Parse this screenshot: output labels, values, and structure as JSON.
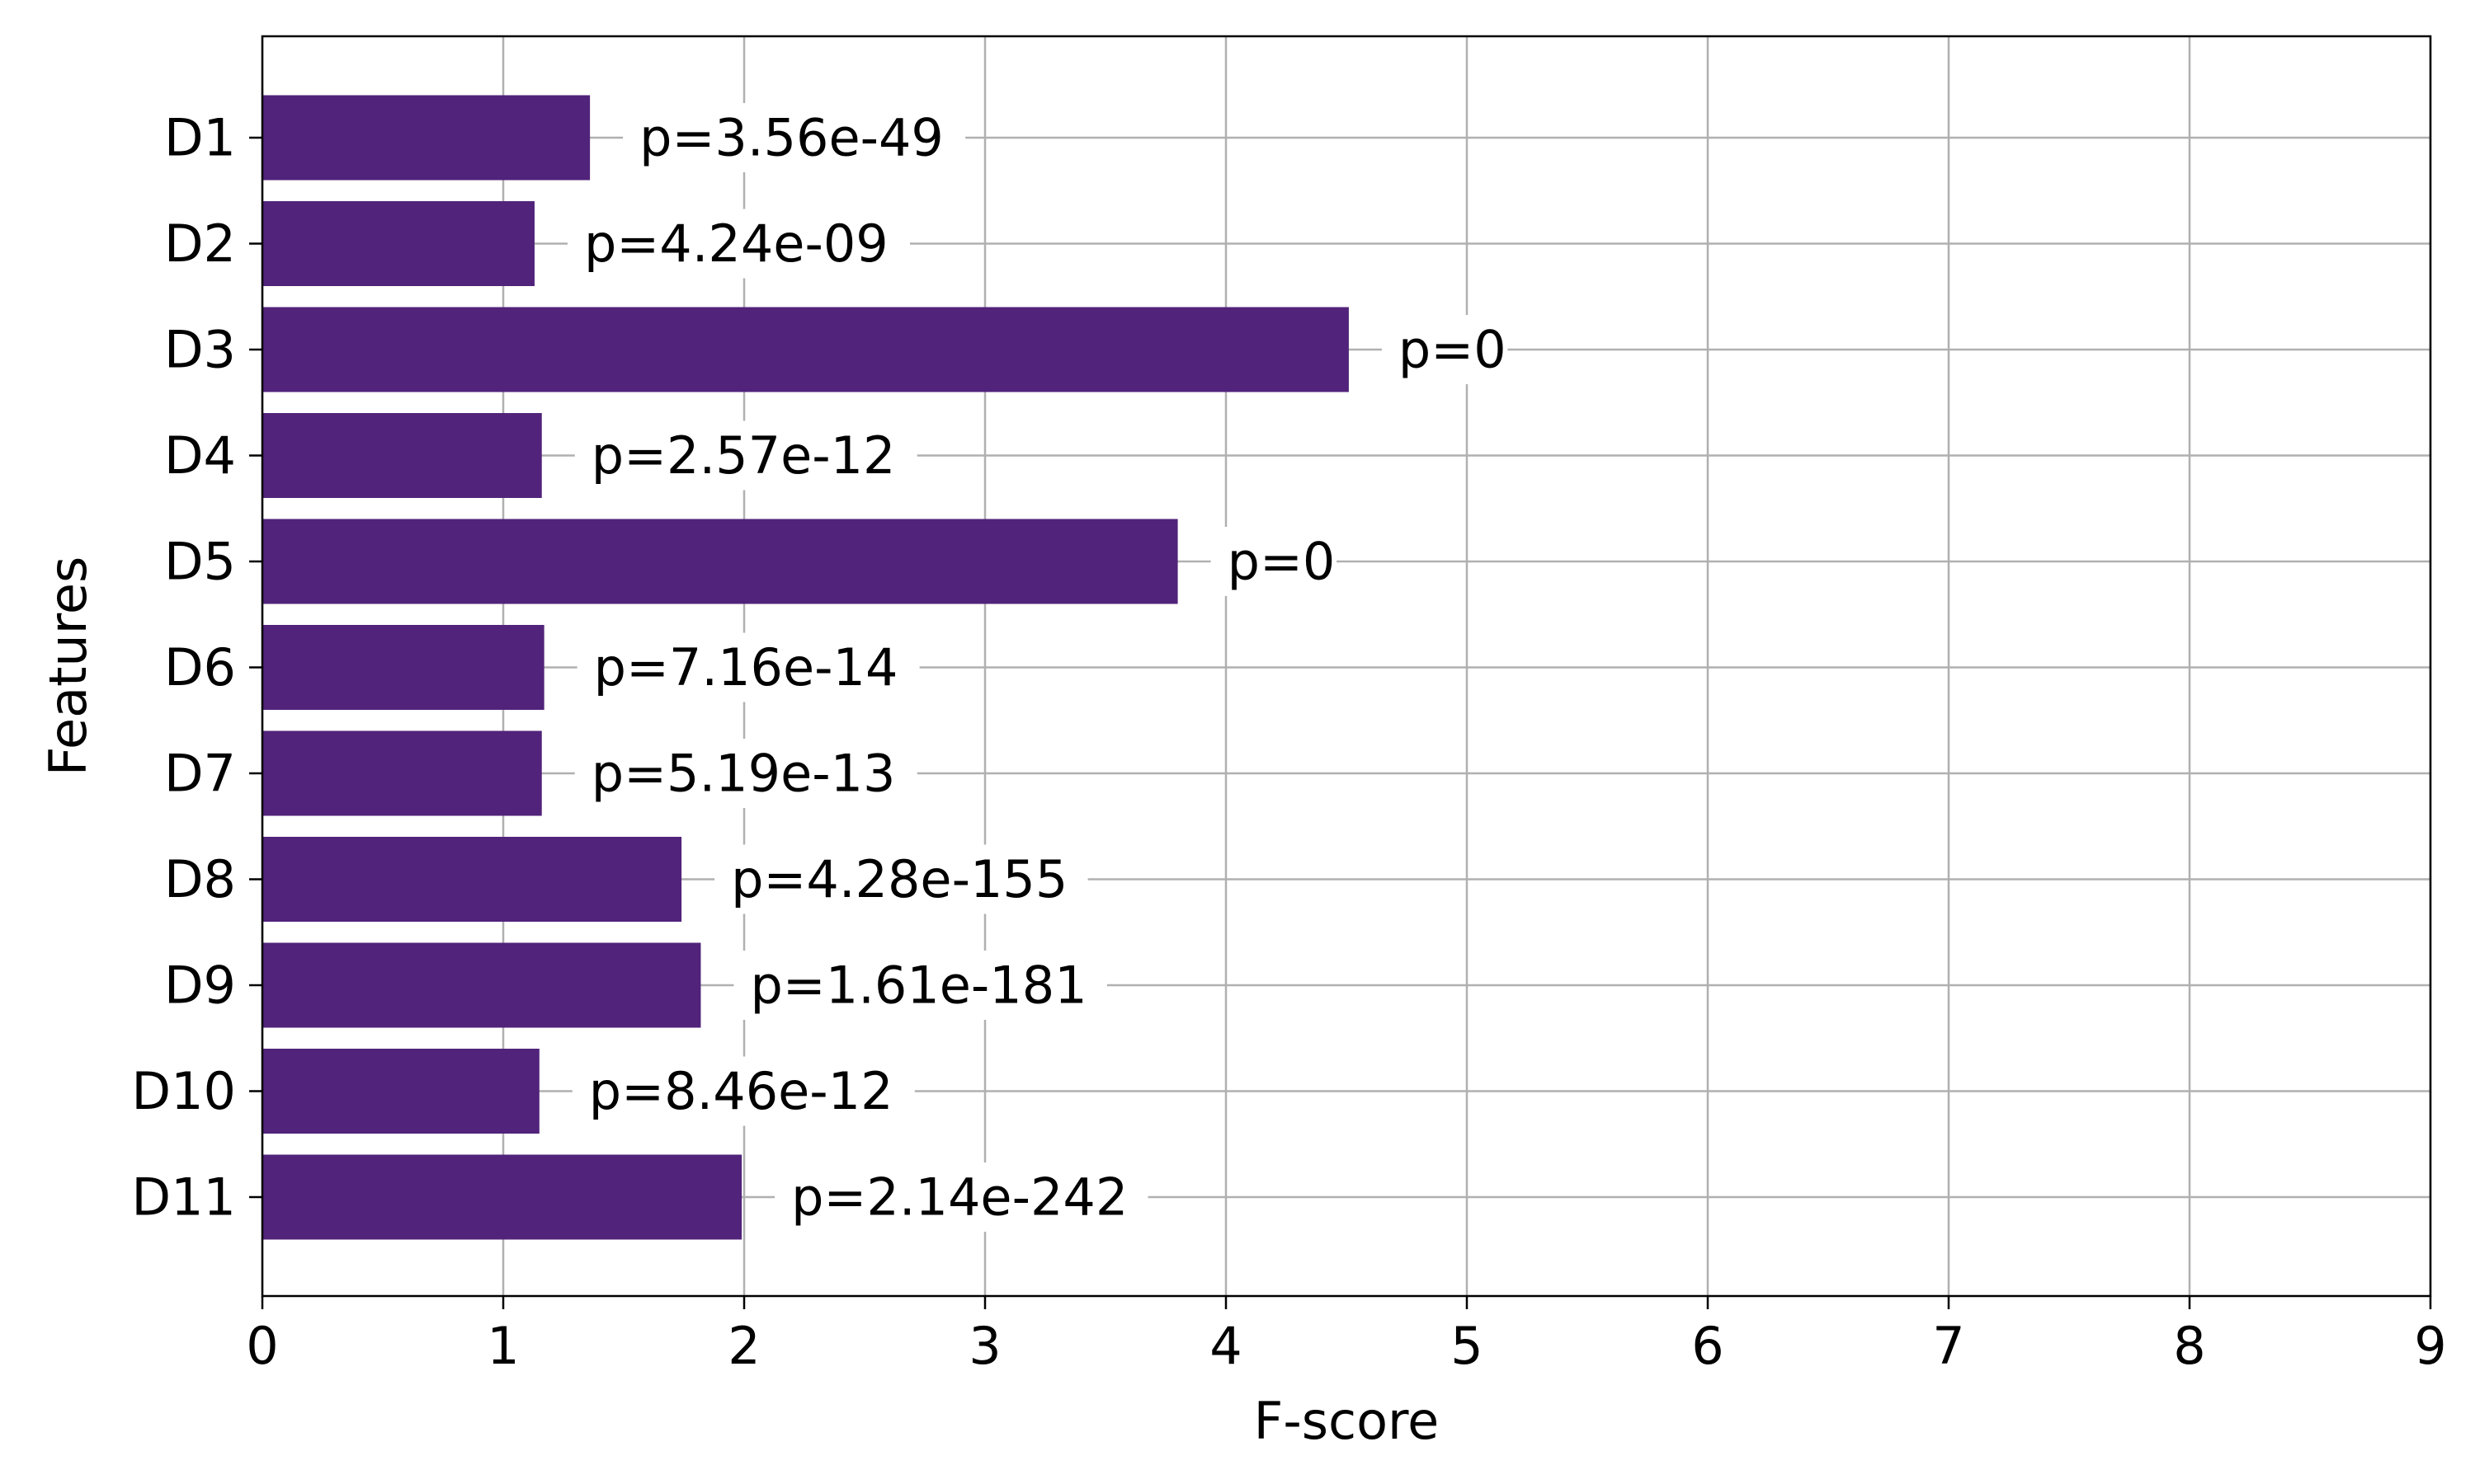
{
  "chart_data": {
    "type": "bar",
    "orientation": "horizontal",
    "title": "",
    "xlabel": "F-score",
    "ylabel": "Features",
    "xlim": [
      0,
      9
    ],
    "xticks": [
      0,
      1,
      2,
      3,
      4,
      5,
      6,
      7,
      8,
      9
    ],
    "grid": true,
    "bar_color": "#51237a",
    "categories": [
      "D1",
      "D2",
      "D3",
      "D4",
      "D5",
      "D6",
      "D7",
      "D8",
      "D9",
      "D10",
      "D11"
    ],
    "values": [
      1.36,
      1.13,
      4.51,
      1.16,
      3.8,
      1.17,
      1.16,
      1.74,
      1.82,
      1.15,
      1.99
    ],
    "bar_labels": [
      "p=3.56e-49",
      "p=4.24e-09",
      "p=0",
      "p=2.57e-12",
      "p=0",
      "p=7.16e-14",
      "p=5.19e-13",
      "p=4.28e-155",
      "p=1.61e-181",
      "p=8.46e-12",
      "p=2.14e-242"
    ]
  }
}
